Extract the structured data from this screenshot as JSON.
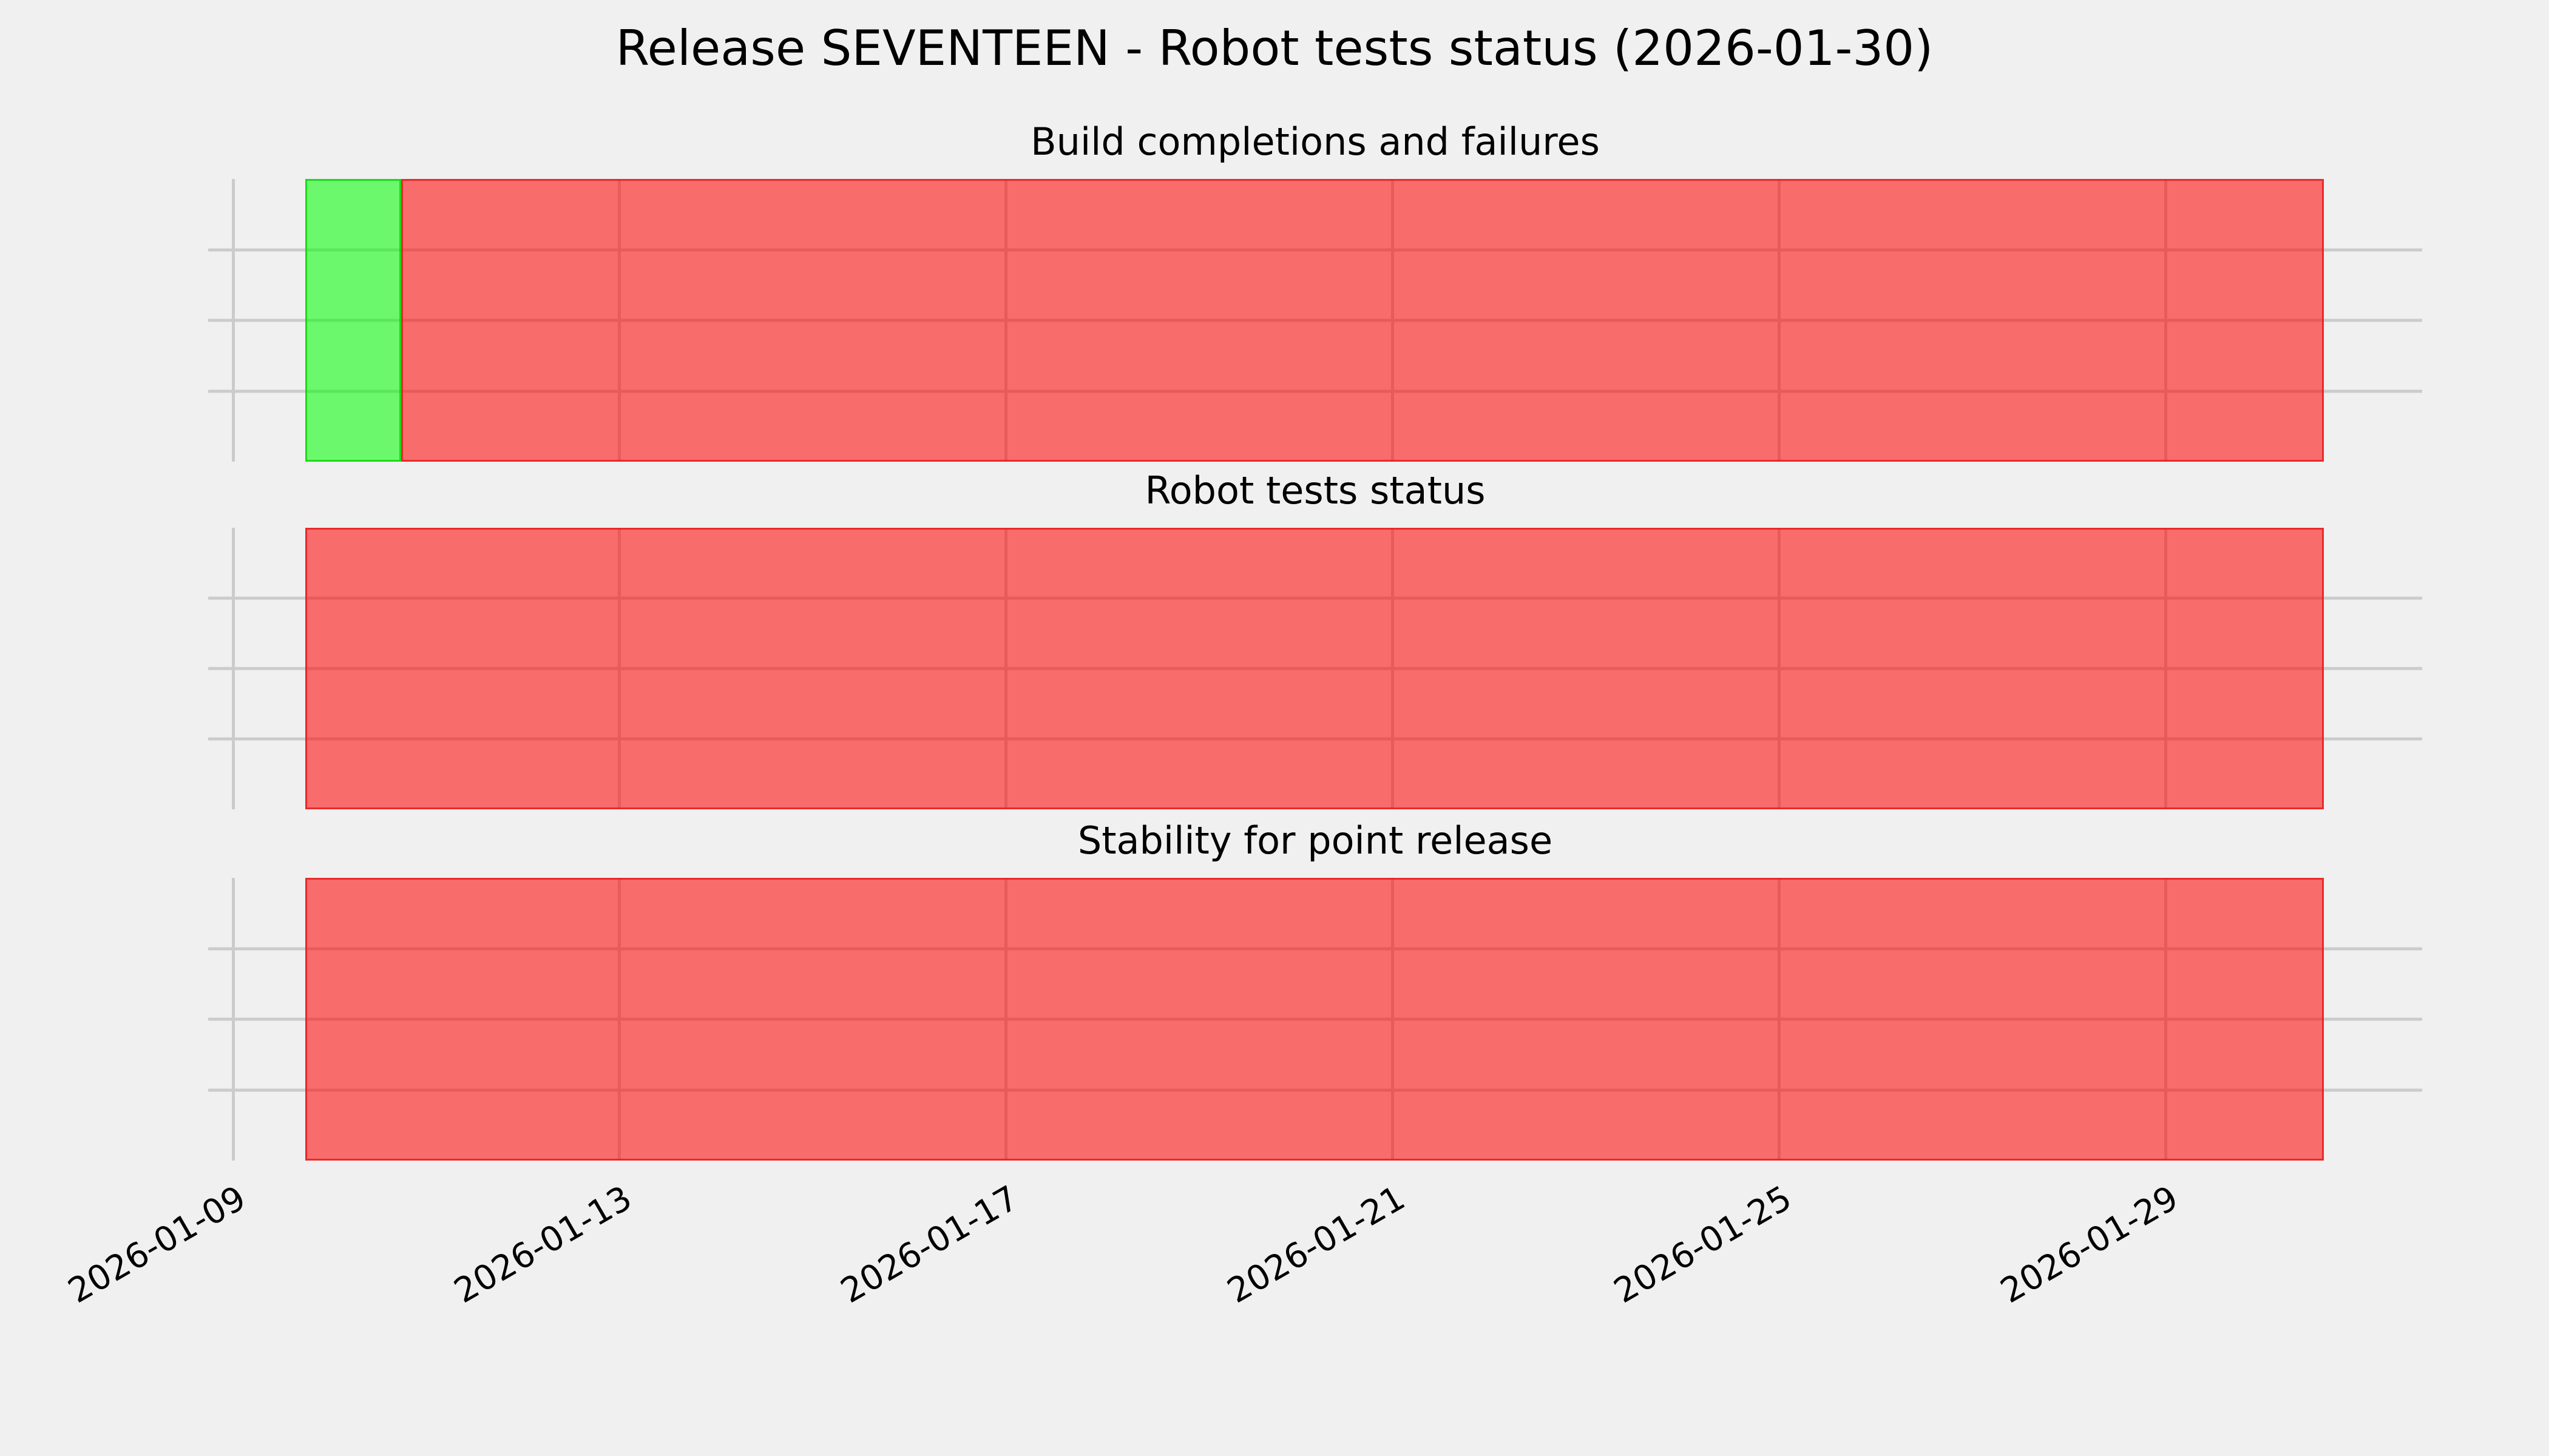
{
  "title": "Release SEVENTEEN - Robot tests status (2026-01-30)",
  "colors": {
    "background": "#f0f0f0",
    "grid": "#cbcbcb",
    "text": "#000000",
    "pass_fill": "rgba(0,255,0,0.55)",
    "pass_edge": "rgba(0,210,0,0.75)",
    "fail_fill": "rgba(255,0,0,0.55)",
    "fail_edge": "rgba(230,30,30,0.85)",
    "pass_blended_hex": "#6cf86c",
    "fail_blended_hex": "#f86c6c"
  },
  "chart_data": {
    "type": "bar",
    "subtype": "timeline-status-broken-barh",
    "title": "Release SEVENTEEN - Robot tests status (2026-01-30)",
    "x_axis": {
      "tick_labels": [
        "2026-01-09",
        "2026-01-13",
        "2026-01-17",
        "2026-01-21",
        "2026-01-25",
        "2026-01-29"
      ],
      "tick_positions_days": [
        0,
        4,
        8,
        12,
        16,
        20
      ],
      "epoch": "2026-01-09",
      "xlim_days": [
        -0.26,
        22.66
      ],
      "tick_rotation_deg": 30,
      "grid": "on"
    },
    "y_axis": {
      "tick_labels": [],
      "h_gridlines_per_subplot": 3
    },
    "bars_span_days": [
      0.75,
      21.64
    ],
    "subplots": [
      {
        "title": "Build completions and failures",
        "segments": [
          {
            "status": "pass",
            "start_day": 0.75,
            "end_day": 1.74
          },
          {
            "status": "fail",
            "start_day": 1.74,
            "end_day": 21.64
          }
        ]
      },
      {
        "title": "Robot tests status",
        "segments": [
          {
            "status": "fail",
            "start_day": 0.75,
            "end_day": 21.64
          }
        ]
      },
      {
        "title": "Stability for point release",
        "segments": [
          {
            "status": "fail",
            "start_day": 0.75,
            "end_day": 21.64
          }
        ]
      }
    ],
    "legend": "none",
    "status_colors": {
      "pass": "green",
      "fail": "red"
    }
  }
}
